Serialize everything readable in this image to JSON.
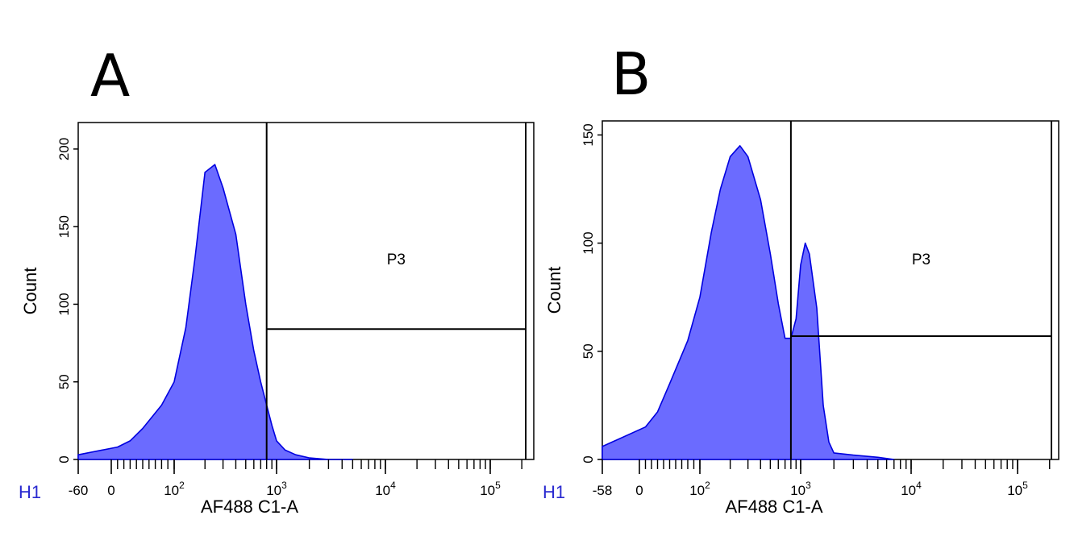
{
  "figure": {
    "panel_letters": [
      "A",
      "B"
    ]
  },
  "chart_data": [
    {
      "type": "area",
      "panel": "A",
      "histogram_label": "H1",
      "xlabel": "AF488 C1-A",
      "ylabel": "Count",
      "x_scale": "biexponential",
      "xlim": [
        -60,
        250000
      ],
      "ylim": [
        0,
        215
      ],
      "yticks": [
        "0",
        "50",
        "100",
        "150",
        "200"
      ],
      "x_ticks": [
        {
          "value": -60,
          "label": "-60"
        },
        {
          "value": 0,
          "label": "0"
        },
        {
          "value": 100,
          "label": "10^2"
        },
        {
          "value": 1000,
          "label": "10^3"
        },
        {
          "value": 10000,
          "label": "10^4"
        },
        {
          "value": 100000,
          "label": "10^5"
        }
      ],
      "gate": {
        "name": "P3",
        "x_min": 800,
        "x_max": 250000,
        "marker_count": 84
      },
      "fill_color": "#6b6bff",
      "line_color": "#0000e0",
      "x": [
        -60,
        10,
        30,
        50,
        80,
        100,
        130,
        160,
        200,
        250,
        300,
        400,
        500,
        600,
        700,
        800,
        900,
        1000,
        1200,
        1500,
        2000,
        3000,
        5000
      ],
      "values": [
        3,
        8,
        12,
        20,
        35,
        50,
        85,
        130,
        185,
        190,
        175,
        145,
        100,
        70,
        50,
        35,
        22,
        12,
        6,
        3,
        1,
        0,
        0
      ]
    },
    {
      "type": "area",
      "panel": "B",
      "histogram_label": "H1",
      "xlabel": "AF488 C1-A",
      "ylabel": "Count",
      "x_scale": "biexponential",
      "xlim": [
        -58,
        250000
      ],
      "ylim": [
        0,
        155
      ],
      "yticks": [
        "0",
        "50",
        "100",
        "150"
      ],
      "x_ticks": [
        {
          "value": -58,
          "label": "-58"
        },
        {
          "value": 0,
          "label": "0"
        },
        {
          "value": 100,
          "label": "10^2"
        },
        {
          "value": 1000,
          "label": "10^3"
        },
        {
          "value": 10000,
          "label": "10^4"
        },
        {
          "value": 100000,
          "label": "10^5"
        }
      ],
      "gate": {
        "name": "P3",
        "x_min": 800,
        "x_max": 250000,
        "marker_count": 57
      },
      "fill_color": "#6b6bff",
      "line_color": "#0000e0",
      "x": [
        -58,
        10,
        30,
        50,
        80,
        100,
        130,
        160,
        200,
        250,
        300,
        400,
        500,
        600,
        700,
        800,
        900,
        1000,
        1100,
        1200,
        1400,
        1600,
        1800,
        2000,
        3000,
        5000,
        7000
      ],
      "values": [
        6,
        15,
        22,
        35,
        55,
        75,
        105,
        125,
        140,
        145,
        140,
        120,
        95,
        72,
        56,
        56,
        65,
        90,
        100,
        95,
        70,
        25,
        8,
        3,
        2,
        1,
        0
      ]
    }
  ]
}
